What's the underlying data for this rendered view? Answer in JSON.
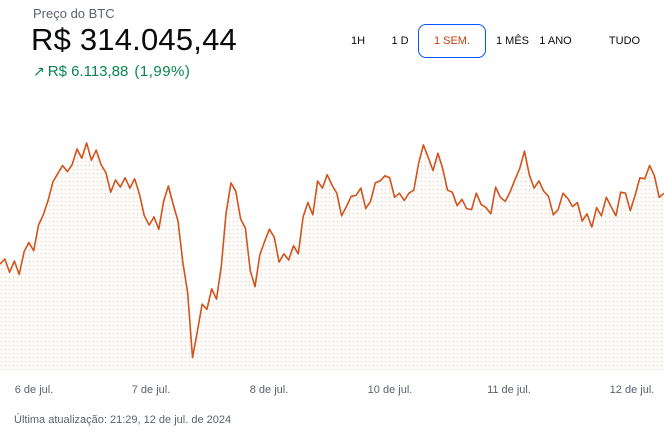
{
  "header": {
    "title": "Preço do BTC",
    "price": "R$ 314.045,44",
    "change_icon": "arrow-up-right-icon",
    "change_amount": "R$ 6.113,88",
    "change_percent": "(1,99%)"
  },
  "ranges": [
    {
      "label": "1H",
      "active": false
    },
    {
      "label": "1 D",
      "active": false
    },
    {
      "label": "1 SEM.",
      "active": true
    },
    {
      "label": "1 MÊS",
      "active": false
    },
    {
      "label": "1 ANO",
      "active": false
    },
    {
      "label": "TUDO",
      "active": false
    }
  ],
  "footer": {
    "updated": "Última atualização: 21:29, 12 de jul. de 2024"
  },
  "colors": {
    "line": "#d2531b",
    "fill_dots": "#f6c9b3",
    "positive": "#098551",
    "active_border": "#0052ff"
  },
  "chart_data": {
    "type": "line",
    "title": "",
    "xlabel": "",
    "ylabel": "",
    "x_ticks": [
      "6 de jul.",
      "7 de jul.",
      "8 de jul.",
      "10 de jul.",
      "11 de jul.",
      "12 de jul."
    ],
    "grid": false,
    "legend": "none",
    "ylim": [
      292500,
      318000
    ],
    "series": [
      {
        "name": "",
        "values": [
          303000,
          303500,
          302200,
          303300,
          302000,
          304200,
          305100,
          304300,
          306800,
          307800,
          309200,
          311000,
          311800,
          312600,
          312000,
          312700,
          314200,
          313300,
          314800,
          313100,
          314100,
          312700,
          311900,
          310000,
          311200,
          310500,
          311400,
          310400,
          311300,
          309800,
          307700,
          306800,
          307600,
          306400,
          309100,
          310600,
          308800,
          307200,
          303200,
          300200,
          293900,
          296400,
          299100,
          298600,
          300600,
          299600,
          302800,
          308000,
          310900,
          310100,
          307400,
          306500,
          302400,
          300800,
          303900,
          305200,
          306400,
          305600,
          303200,
          304000,
          303400,
          304800,
          304000,
          307600,
          309000,
          307800,
          311100,
          310400,
          311700,
          310700,
          309900,
          307700,
          308600,
          309600,
          309700,
          310400,
          308400,
          309100,
          310900,
          311100,
          311600,
          311400,
          309500,
          309900,
          309200,
          309900,
          310200,
          312800,
          314600,
          313400,
          312100,
          313800,
          312300,
          310200,
          310000,
          308700,
          309300,
          308400,
          308300,
          309900,
          308800,
          308500,
          307900,
          310500,
          309500,
          309100,
          310000,
          311200,
          312300,
          314000,
          311700,
          310400,
          311100,
          310100,
          309600,
          307800,
          308300,
          309900,
          309400,
          308600,
          309000,
          307200,
          307900,
          306600,
          308500,
          307700,
          309500,
          308600,
          307700,
          310000,
          309900,
          308200,
          309700,
          311400,
          311300,
          312600,
          311600,
          309500,
          309900
        ]
      }
    ]
  }
}
